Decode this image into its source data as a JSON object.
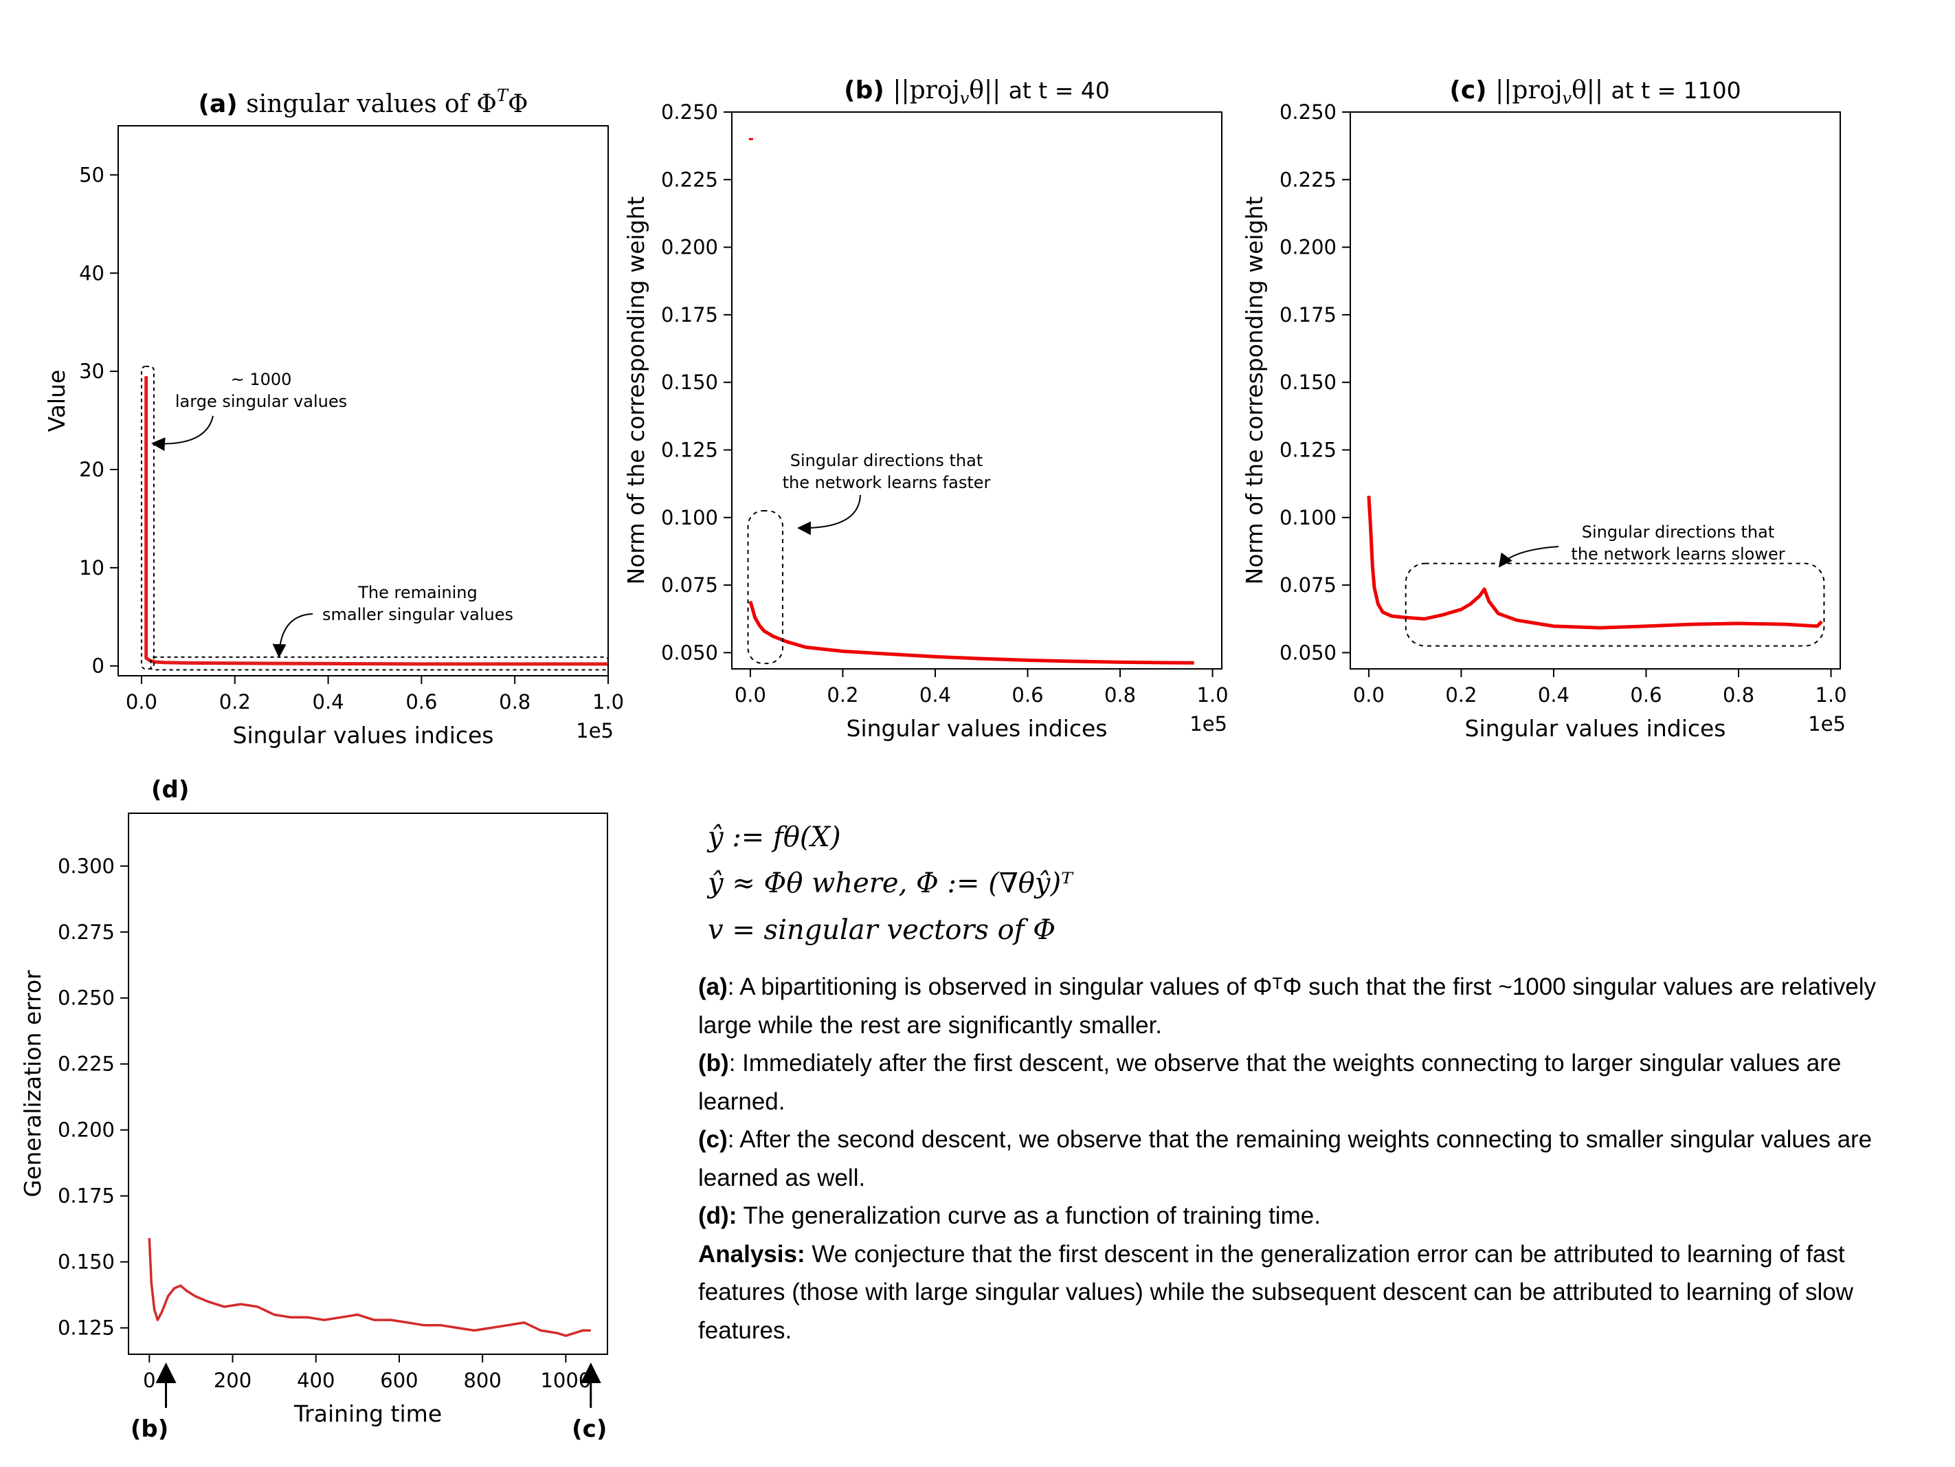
{
  "chart_data": [
    {
      "id": "a",
      "type": "line",
      "panel_label": "(a)",
      "title": "singular values of Φ",
      "title_sup": "T",
      "title_tail": "Φ",
      "xlabel": "Singular values indices",
      "ylabel": "Value",
      "x_multiplier": "1e5",
      "xlim": [
        -0.05,
        1.0
      ],
      "ylim": [
        -1,
        55
      ],
      "xticks": [
        0.0,
        0.2,
        0.4,
        0.6,
        0.8,
        1.0
      ],
      "xticklabels": [
        "0.0",
        "0.2",
        "0.4",
        "0.6",
        "0.8",
        "1.0"
      ],
      "yticks": [
        0,
        10,
        20,
        30,
        40,
        50
      ],
      "yticklabels": [
        "0",
        "10",
        "20",
        "30",
        "40",
        "50"
      ],
      "series": [
        {
          "color": "#e01c1c",
          "x": [
            0.01,
            0.01,
            0.02,
            0.03,
            0.05,
            0.1,
            0.3,
            0.6,
            1.0
          ],
          "y": [
            29.5,
            0.8,
            0.5,
            0.4,
            0.35,
            0.3,
            0.25,
            0.2,
            0.2
          ]
        }
      ],
      "annotations": [
        {
          "name": "large-singular",
          "lines": [
            "~ 1000",
            "large singular values"
          ]
        },
        {
          "name": "remaining-smaller",
          "lines": [
            "The remaining",
            "smaller singular values"
          ]
        }
      ]
    },
    {
      "id": "b",
      "type": "line",
      "panel_label": "(b)",
      "title": "||proj",
      "title_sub": "v",
      "title_tail": "θ||",
      "title_suffix": "at  t = 40",
      "xlabel": "Singular values indices",
      "ylabel": "Norm of the corresponding weight",
      "x_multiplier": "1e5",
      "xlim": [
        -0.04,
        1.02
      ],
      "ylim": [
        0.044,
        0.25
      ],
      "xticks": [
        0.0,
        0.2,
        0.4,
        0.6,
        0.8,
        1.0
      ],
      "xticklabels": [
        "0.0",
        "0.2",
        "0.4",
        "0.6",
        "0.8",
        "1.0"
      ],
      "yticks": [
        0.05,
        0.075,
        0.1,
        0.125,
        0.15,
        0.175,
        0.2,
        0.225,
        0.25
      ],
      "yticklabels": [
        "0.050",
        "0.075",
        "0.100",
        "0.125",
        "0.150",
        "0.175",
        "0.200",
        "0.225",
        "0.250"
      ],
      "series": [
        {
          "color": "#ee0000",
          "x": [
            0.0,
            0.005,
            0.01,
            0.02,
            0.03,
            0.05,
            0.08,
            0.12,
            0.2,
            0.3,
            0.4,
            0.5,
            0.6,
            0.7,
            0.8,
            0.9,
            0.96
          ],
          "y": [
            0.069,
            0.066,
            0.063,
            0.06,
            0.058,
            0.056,
            0.054,
            0.052,
            0.0505,
            0.0495,
            0.0485,
            0.0478,
            0.0472,
            0.0468,
            0.0465,
            0.0463,
            0.0462
          ]
        }
      ],
      "outlier": {
        "x": 0.0,
        "y": 0.24
      },
      "annotations": [
        {
          "name": "learns-faster",
          "lines": [
            "Singular directions that",
            "the network learns faster"
          ]
        }
      ]
    },
    {
      "id": "c",
      "type": "line",
      "panel_label": "(c)",
      "title": "||proj",
      "title_sub": "v",
      "title_tail": "θ||",
      "title_suffix": "at  t = 1100",
      "xlabel": "Singular values indices",
      "ylabel": "Norm of the corresponding weight",
      "x_multiplier": "1e5",
      "xlim": [
        -0.04,
        1.02
      ],
      "ylim": [
        0.044,
        0.25
      ],
      "xticks": [
        0.0,
        0.2,
        0.4,
        0.6,
        0.8,
        1.0
      ],
      "xticklabels": [
        "0.0",
        "0.2",
        "0.4",
        "0.6",
        "0.8",
        "1.0"
      ],
      "yticks": [
        0.05,
        0.075,
        0.1,
        0.125,
        0.15,
        0.175,
        0.2,
        0.225,
        0.25
      ],
      "yticklabels": [
        "0.050",
        "0.075",
        "0.100",
        "0.125",
        "0.150",
        "0.175",
        "0.200",
        "0.225",
        "0.250"
      ],
      "series": [
        {
          "color": "#ee0000",
          "x": [
            0.0,
            0.004,
            0.008,
            0.012,
            0.02,
            0.03,
            0.05,
            0.08,
            0.12,
            0.16,
            0.2,
            0.22,
            0.24,
            0.25,
            0.26,
            0.28,
            0.32,
            0.4,
            0.5,
            0.6,
            0.7,
            0.8,
            0.9,
            0.97,
            0.98
          ],
          "y": [
            0.108,
            0.096,
            0.082,
            0.074,
            0.068,
            0.065,
            0.0635,
            0.063,
            0.0625,
            0.064,
            0.066,
            0.068,
            0.071,
            0.0735,
            0.069,
            0.0645,
            0.062,
            0.0598,
            0.0592,
            0.0598,
            0.0605,
            0.0608,
            0.0605,
            0.0598,
            0.0615
          ]
        }
      ],
      "annotations": [
        {
          "name": "learns-slower",
          "lines": [
            "Singular directions that",
            "the network learns slower"
          ]
        }
      ]
    },
    {
      "id": "d",
      "type": "line",
      "panel_label": "(d)",
      "title": "",
      "xlabel": "Training time",
      "ylabel": "Generalization error",
      "xlim": [
        -50,
        1100
      ],
      "ylim": [
        0.115,
        0.32
      ],
      "xticks": [
        0,
        200,
        400,
        600,
        800,
        1000
      ],
      "xticklabels": [
        "0",
        "200",
        "400",
        "600",
        "800",
        "1000"
      ],
      "yticks": [
        0.125,
        0.15,
        0.175,
        0.2,
        0.225,
        0.25,
        0.275,
        0.3
      ],
      "yticklabels": [
        "0.125",
        "0.150",
        "0.175",
        "0.200",
        "0.225",
        "0.250",
        "0.275",
        "0.300"
      ],
      "series": [
        {
          "color": "#d42b2b",
          "x": [
            0,
            5,
            12,
            20,
            30,
            45,
            60,
            75,
            90,
            110,
            140,
            180,
            220,
            260,
            300,
            340,
            380,
            420,
            460,
            500,
            540,
            580,
            620,
            660,
            700,
            740,
            780,
            820,
            860,
            900,
            940,
            980,
            1000,
            1020,
            1040,
            1060
          ],
          "y": [
            0.159,
            0.142,
            0.132,
            0.128,
            0.131,
            0.137,
            0.14,
            0.141,
            0.139,
            0.137,
            0.135,
            0.133,
            0.134,
            0.133,
            0.13,
            0.129,
            0.129,
            0.128,
            0.129,
            0.13,
            0.128,
            0.128,
            0.127,
            0.126,
            0.126,
            0.125,
            0.124,
            0.125,
            0.126,
            0.127,
            0.124,
            0.123,
            0.122,
            0.123,
            0.124,
            0.124
          ]
        }
      ],
      "markers": [
        {
          "x": 40,
          "label": "(b)"
        },
        {
          "x": 1060,
          "label": "(c)"
        }
      ]
    }
  ],
  "equations": [
    {
      "name": "eq-yhat-def",
      "text": "ŷ := fθ(X)"
    },
    {
      "name": "eq-approx",
      "text": "ŷ ≈ Φθ    where,    Φ := (∇θŷ)ᵀ"
    },
    {
      "name": "eq-v",
      "text": "v = singular vectors of Φ"
    }
  ],
  "caption": [
    {
      "label": "(a)",
      "text": ": A bipartitioning is observed in singular values of ΦᵀΦ such that the first ~1000 singular values are relatively large while the rest are significantly smaller."
    },
    {
      "label": "(b)",
      "text": ": Immediately after the first descent, we observe that the weights connecting to larger singular values are learned."
    },
    {
      "label": "(c)",
      "text": ": After the second descent, we observe that the remaining weights connecting to smaller singular values are learned as well."
    },
    {
      "label": "(d):",
      "text": " The generalization curve as a function of training time."
    },
    {
      "label": "Analysis:",
      "text": " We conjecture that the first descent in the generalization error can be attributed to learning of fast features (those with large singular values) while the subsequent descent can be attributed to learning of slow features."
    }
  ]
}
